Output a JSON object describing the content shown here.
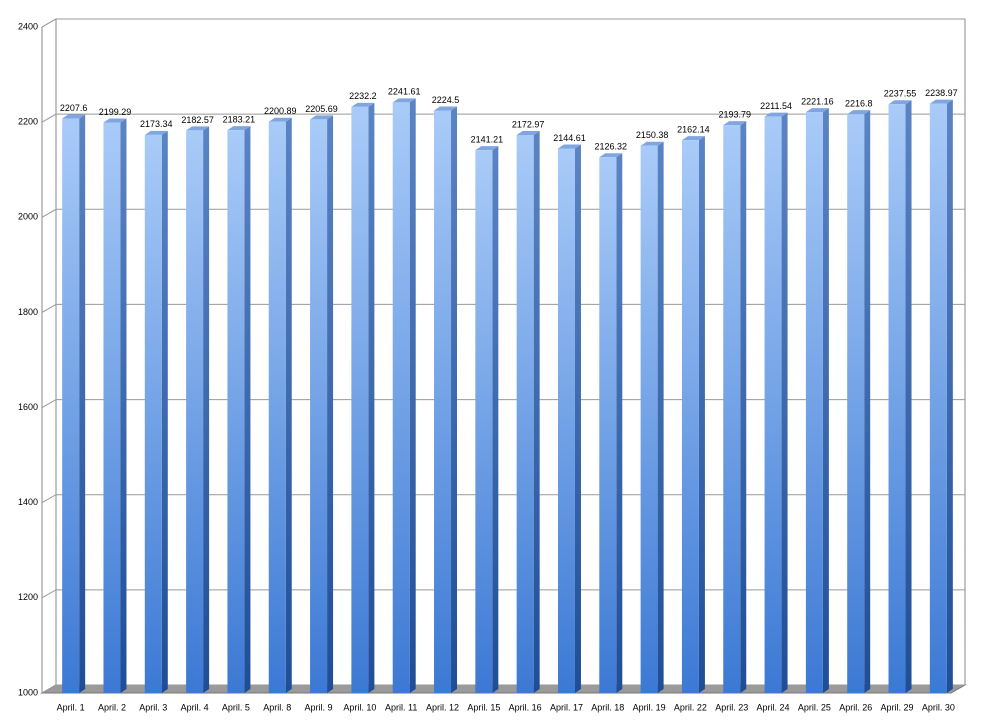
{
  "chart_data": {
    "type": "bar3d",
    "categories": [
      "April. 1",
      "April. 2",
      "April. 3",
      "April. 4",
      "April. 5",
      "April. 8",
      "April. 9",
      "April. 10",
      "April. 11",
      "April. 12",
      "April. 15",
      "April. 16",
      "April. 17",
      "April. 18",
      "April. 19",
      "April. 22",
      "April. 23",
      "April. 24",
      "April. 25",
      "April. 26",
      "April. 29",
      "April. 30"
    ],
    "values": [
      2207.6,
      2199.29,
      2173.34,
      2182.57,
      2183.21,
      2200.89,
      2205.69,
      2232.2,
      2241.61,
      2224.5,
      2141.21,
      2172.97,
      2144.61,
      2126.32,
      2150.38,
      2162.14,
      2193.79,
      2211.54,
      2221.16,
      2216.8,
      2237.55,
      2238.97
    ],
    "color": "#5b93e0",
    "ylim": [
      1000,
      2400
    ],
    "yticks": [
      1000,
      1200,
      1400,
      1600,
      1800,
      2000,
      2200,
      2400
    ],
    "grid": true
  }
}
